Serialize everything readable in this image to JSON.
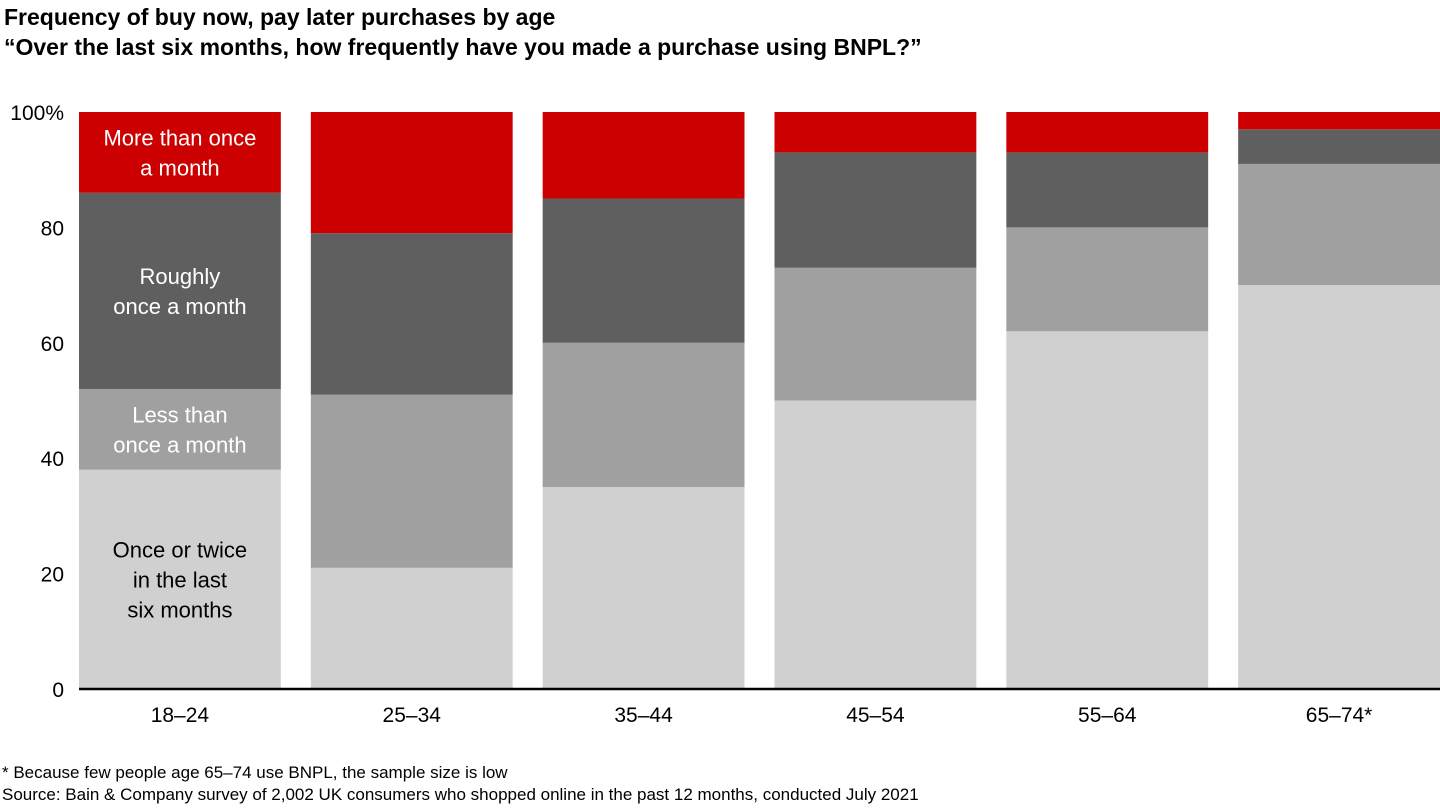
{
  "chart_data": {
    "type": "bar",
    "stacked": true,
    "title": "Frequency of buy now, pay later purchases by age",
    "subtitle": "“Over the last six months, how frequently have you made a purchase using BNPL?”",
    "xlabel": "",
    "ylabel": "",
    "ylim": [
      0,
      100
    ],
    "yticks": [
      0,
      20,
      40,
      60,
      80,
      100
    ],
    "ytick_labels": [
      "0",
      "20",
      "40",
      "60",
      "80",
      "100%"
    ],
    "grid": false,
    "categories": [
      "18–24",
      "25–34",
      "35–44",
      "45–54",
      "55–64",
      "65–74*"
    ],
    "series": [
      {
        "name": "Once or twice in the last six months",
        "label_lines": [
          "Once or twice",
          "in the last",
          "six months"
        ],
        "color": "#D0D0D0",
        "label_color": "#000000",
        "values": [
          38,
          21,
          35,
          50,
          62,
          70
        ]
      },
      {
        "name": "Less than once a month",
        "label_lines": [
          "Less than",
          "once a month"
        ],
        "color": "#A0A0A0",
        "label_color": "#FFFFFF",
        "values": [
          14,
          30,
          25,
          23,
          18,
          21
        ]
      },
      {
        "name": "Roughly once a month",
        "label_lines": [
          "Roughly",
          "once a month"
        ],
        "color": "#5F5F5F",
        "label_color": "#FFFFFF",
        "values": [
          34,
          28,
          25,
          20,
          13,
          6
        ]
      },
      {
        "name": "More than once a month",
        "label_lines": [
          "More than once",
          "a month"
        ],
        "color": "#CC0000",
        "label_color": "#FFFFFF",
        "values": [
          14,
          21,
          15,
          7,
          7,
          3
        ]
      }
    ],
    "legend_placement": "inside first bar"
  },
  "notes": {
    "footnote": "* Because few people age 65–74 use BNPL, the sample size is low",
    "source": "Source: Bain & Company survey of 2,002 UK consumers who shopped online in the past 12 months, conducted July 2021"
  }
}
